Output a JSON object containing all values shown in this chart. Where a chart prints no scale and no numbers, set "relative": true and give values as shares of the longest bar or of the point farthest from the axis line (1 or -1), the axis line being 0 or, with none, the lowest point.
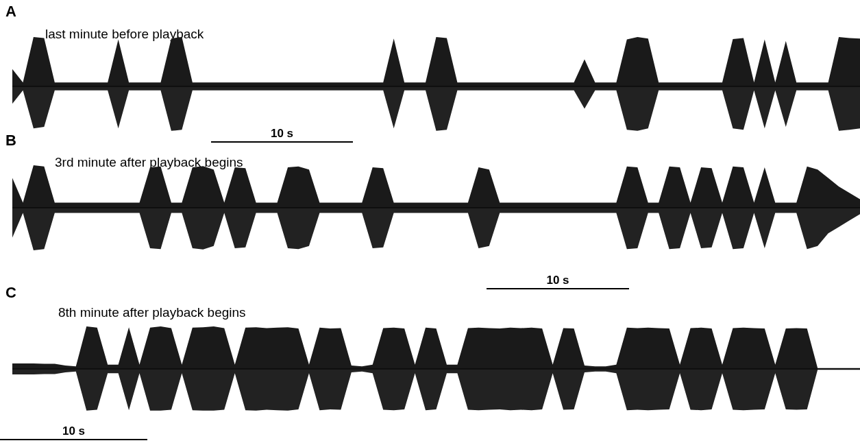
{
  "chart_data": [
    {
      "type": "area",
      "relative": true,
      "title": "last minute before playback",
      "annotations": [
        "A",
        "10 s"
      ],
      "categories": [
        null,
        null,
        null,
        null,
        null,
        null,
        null,
        null,
        null,
        null,
        null,
        null,
        null,
        null,
        null,
        null,
        null,
        null,
        null,
        null,
        null,
        null,
        null,
        null,
        null,
        null,
        null,
        null,
        null,
        null,
        null,
        null,
        null,
        null,
        null,
        null,
        null,
        null,
        null,
        null,
        null,
        null,
        null,
        null,
        null,
        null,
        null,
        null,
        null,
        null,
        null,
        null,
        null,
        null,
        null,
        null,
        null,
        null,
        null,
        null,
        null,
        null,
        null,
        null,
        null,
        null,
        null,
        null,
        null,
        null,
        null,
        null,
        null,
        null,
        null,
        null,
        null,
        null,
        null,
        null,
        null
      ],
      "series": [
        {
          "color": "#1a1a1a",
          "values": [
            0.35,
            0.08,
            1,
            0.98,
            0.08,
            0.08,
            0.08,
            0.08,
            0.08,
            0.08,
            0.95,
            0.08,
            0.08,
            0.08,
            0.08,
            0.97,
            1,
            0.08,
            0.08,
            0.08,
            0.08,
            0.08,
            0.08,
            0.08,
            0.08,
            0.08,
            0.08,
            0.08,
            0.08,
            0.08,
            0.08,
            0.08,
            0.08,
            0.08,
            0.08,
            0.08,
            0.97,
            0.08,
            0.08,
            0.08,
            1,
            0.98,
            0.08,
            0.08,
            0.08,
            0.08,
            0.08,
            0.08,
            0.08,
            0.08,
            0.08,
            0.08,
            0.08,
            0.08,
            0.55,
            0.08,
            0.08,
            0.08,
            0.95,
            1,
            0.97,
            0.08,
            0.08,
            0.08,
            0.08,
            0.08,
            0.08,
            0.08,
            0.96,
            0.98,
            0.08,
            0.95,
            0.08,
            0.92,
            0.08,
            0.08,
            0.08,
            0.08,
            1,
            0.98,
            0.97
          ]
        },
        {
          "color": "#222222",
          "values": [
            -0.35,
            -0.08,
            -0.85,
            -0.82,
            -0.08,
            -0.08,
            -0.08,
            -0.08,
            -0.08,
            -0.08,
            -0.85,
            -0.08,
            -0.08,
            -0.08,
            -0.08,
            -0.9,
            -0.88,
            -0.08,
            -0.08,
            -0.08,
            -0.08,
            -0.08,
            -0.08,
            -0.08,
            -0.08,
            -0.08,
            -0.08,
            -0.08,
            -0.08,
            -0.08,
            -0.08,
            -0.08,
            -0.08,
            -0.08,
            -0.08,
            -0.08,
            -0.85,
            -0.08,
            -0.08,
            -0.08,
            -0.9,
            -0.88,
            -0.08,
            -0.08,
            -0.08,
            -0.08,
            -0.08,
            -0.08,
            -0.08,
            -0.08,
            -0.08,
            -0.08,
            -0.08,
            -0.08,
            -0.45,
            -0.08,
            -0.08,
            -0.08,
            -0.88,
            -0.9,
            -0.85,
            -0.08,
            -0.08,
            -0.08,
            -0.08,
            -0.08,
            -0.08,
            -0.08,
            -0.85,
            -0.88,
            -0.08,
            -0.85,
            -0.08,
            -0.82,
            -0.08,
            -0.08,
            -0.08,
            -0.08,
            -0.9,
            -0.88,
            -0.85
          ]
        }
      ]
    },
    {
      "type": "area",
      "relative": true,
      "title": "3rd minute after playback begins",
      "annotations": [
        "B",
        "10 s"
      ],
      "categories": [
        null,
        null,
        null,
        null,
        null,
        null,
        null,
        null,
        null,
        null,
        null,
        null,
        null,
        null,
        null,
        null,
        null,
        null,
        null,
        null,
        null,
        null,
        null,
        null,
        null,
        null,
        null,
        null,
        null,
        null,
        null,
        null,
        null,
        null,
        null,
        null,
        null,
        null,
        null,
        null,
        null,
        null,
        null,
        null,
        null,
        null,
        null,
        null,
        null,
        null,
        null,
        null,
        null,
        null,
        null,
        null,
        null,
        null,
        null,
        null,
        null,
        null,
        null,
        null,
        null,
        null,
        null,
        null,
        null,
        null,
        null,
        null,
        null,
        null,
        null,
        null,
        null,
        null,
        null,
        null,
        null
      ],
      "series": [
        {
          "color": "#1a1a1a",
          "values": [
            0.7,
            0.12,
            1,
            0.97,
            0.12,
            0.12,
            0.12,
            0.12,
            0.12,
            0.12,
            0.12,
            0.12,
            0.12,
            0.95,
            0.97,
            0.12,
            0.12,
            0.95,
            0.98,
            0.9,
            0.12,
            0.95,
            0.93,
            0.12,
            0.12,
            0.12,
            0.95,
            0.97,
            0.9,
            0.12,
            0.12,
            0.12,
            0.12,
            0.12,
            0.95,
            0.93,
            0.12,
            0.12,
            0.12,
            0.12,
            0.12,
            0.12,
            0.12,
            0.12,
            0.95,
            0.9,
            0.12,
            0.12,
            0.12,
            0.12,
            0.12,
            0.12,
            0.12,
            0.12,
            0.12,
            0.12,
            0.12,
            0.12,
            0.97,
            0.95,
            0.12,
            0.12,
            0.97,
            0.95,
            0.12,
            0.95,
            0.93,
            0.12,
            0.97,
            0.95,
            0.12,
            0.95,
            0.12,
            0.12,
            0.12,
            0.97,
            0.9,
            0.7,
            0.5,
            0.35,
            0.2
          ]
        },
        {
          "color": "#222222",
          "values": [
            -0.7,
            -0.12,
            -1,
            -0.97,
            -0.12,
            -0.12,
            -0.12,
            -0.12,
            -0.12,
            -0.12,
            -0.12,
            -0.12,
            -0.12,
            -0.95,
            -0.97,
            -0.12,
            -0.12,
            -0.95,
            -0.98,
            -0.9,
            -0.12,
            -0.95,
            -0.93,
            -0.12,
            -0.12,
            -0.12,
            -0.95,
            -0.97,
            -0.9,
            -0.12,
            -0.12,
            -0.12,
            -0.12,
            -0.12,
            -0.95,
            -0.93,
            -0.12,
            -0.12,
            -0.12,
            -0.12,
            -0.12,
            -0.12,
            -0.12,
            -0.12,
            -0.95,
            -0.9,
            -0.12,
            -0.12,
            -0.12,
            -0.12,
            -0.12,
            -0.12,
            -0.12,
            -0.12,
            -0.12,
            -0.12,
            -0.12,
            -0.12,
            -0.97,
            -0.95,
            -0.12,
            -0.12,
            -0.97,
            -0.95,
            -0.12,
            -0.95,
            -0.93,
            -0.12,
            -0.97,
            -0.95,
            -0.12,
            -0.95,
            -0.12,
            -0.12,
            -0.12,
            -0.97,
            -0.9,
            -0.6,
            -0.45,
            -0.3,
            -0.15
          ]
        }
      ]
    },
    {
      "type": "area",
      "relative": true,
      "title": "8th minute after playback begins",
      "annotations": [
        "C",
        "10 s"
      ],
      "categories": [
        null,
        null,
        null,
        null,
        null,
        null,
        null,
        null,
        null,
        null,
        null,
        null,
        null,
        null,
        null,
        null,
        null,
        null,
        null,
        null,
        null,
        null,
        null,
        null,
        null,
        null,
        null,
        null,
        null,
        null,
        null,
        null,
        null,
        null,
        null,
        null,
        null,
        null,
        null,
        null,
        null,
        null,
        null,
        null,
        null,
        null,
        null,
        null,
        null,
        null,
        null,
        null,
        null,
        null,
        null,
        null,
        null,
        null,
        null,
        null,
        null,
        null,
        null,
        null,
        null,
        null,
        null,
        null,
        null,
        null,
        null,
        null,
        null,
        null,
        null,
        null,
        null,
        null,
        null,
        null,
        null
      ],
      "series": [
        {
          "color": "#1a1a1a",
          "values": [
            0.13,
            0.13,
            0.13,
            0.12,
            0.12,
            0.08,
            0.06,
            1,
            0.97,
            0.1,
            0.1,
            0.98,
            0.1,
            0.97,
            1,
            0.96,
            0.1,
            0.97,
            0.98,
            1,
            0.96,
            0.1,
            0.97,
            0.98,
            0.96,
            0.97,
            0.98,
            0.95,
            0.1,
            0.97,
            0.95,
            0.96,
            0.08,
            0.06,
            0.1,
            0.96,
            0.97,
            0.95,
            0.1,
            0.97,
            0.95,
            0.1,
            0.1,
            0.96,
            0.97,
            0.96,
            0.95,
            0.97,
            0.96,
            0.97,
            0.95,
            0.1,
            0.96,
            0.95,
            0.08,
            0.06,
            0.06,
            0.1,
            0.97,
            0.96,
            0.97,
            0.96,
            0.95,
            0.1,
            0.96,
            0.97,
            0.95,
            0.1,
            0.96,
            0.97,
            0.96,
            0.95,
            0.1,
            0.95,
            0.96,
            0.95,
            0.02,
            0.02,
            0.02,
            0.02,
            0.02
          ]
        },
        {
          "color": "#222222",
          "values": [
            -0.13,
            -0.13,
            -0.13,
            -0.12,
            -0.12,
            -0.08,
            -0.06,
            -0.98,
            -0.96,
            -0.1,
            -0.1,
            -0.97,
            -0.1,
            -0.98,
            -0.98,
            -0.96,
            -0.1,
            -0.97,
            -0.98,
            -0.98,
            -0.96,
            -0.1,
            -0.97,
            -0.98,
            -0.96,
            -0.97,
            -0.98,
            -0.95,
            -0.1,
            -0.97,
            -0.95,
            -0.96,
            -0.08,
            -0.06,
            -0.1,
            -0.96,
            -0.97,
            -0.95,
            -0.1,
            -0.97,
            -0.95,
            -0.1,
            -0.1,
            -0.96,
            -0.97,
            -0.96,
            -0.95,
            -0.97,
            -0.96,
            -0.97,
            -0.95,
            -0.1,
            -0.96,
            -0.95,
            -0.08,
            -0.06,
            -0.06,
            -0.1,
            -0.97,
            -0.96,
            -0.97,
            -0.96,
            -0.95,
            -0.1,
            -0.96,
            -0.97,
            -0.95,
            -0.1,
            -0.96,
            -0.97,
            -0.96,
            -0.95,
            -0.1,
            -0.95,
            -0.96,
            -0.95,
            -0.02,
            -0.02,
            -0.02,
            -0.02,
            -0.02
          ]
        }
      ]
    }
  ]
}
